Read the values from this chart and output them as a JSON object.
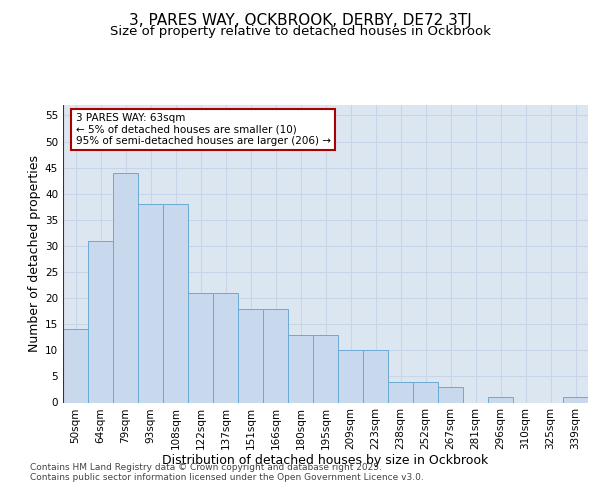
{
  "title_line1": "3, PARES WAY, OCKBROOK, DERBY, DE72 3TJ",
  "title_line2": "Size of property relative to detached houses in Ockbrook",
  "xlabel": "Distribution of detached houses by size in Ockbrook",
  "ylabel": "Number of detached properties",
  "categories": [
    "50sqm",
    "64sqm",
    "79sqm",
    "93sqm",
    "108sqm",
    "122sqm",
    "137sqm",
    "151sqm",
    "166sqm",
    "180sqm",
    "195sqm",
    "209sqm",
    "223sqm",
    "238sqm",
    "252sqm",
    "267sqm",
    "281sqm",
    "296sqm",
    "310sqm",
    "325sqm",
    "339sqm"
  ],
  "values": [
    14,
    31,
    44,
    38,
    38,
    21,
    21,
    18,
    18,
    13,
    13,
    10,
    10,
    4,
    4,
    3,
    0,
    1,
    0,
    0,
    1
  ],
  "bar_color": "#c8d9ed",
  "bar_edge_color": "#6aaad4",
  "marker_color": "#aa0000",
  "annotation_line1": "3 PARES WAY: 63sqm",
  "annotation_line2": "← 5% of detached houses are smaller (10)",
  "annotation_line3": "95% of semi-detached houses are larger (206) →",
  "ylim": [
    0,
    57
  ],
  "yticks": [
    0,
    5,
    10,
    15,
    20,
    25,
    30,
    35,
    40,
    45,
    50,
    55
  ],
  "grid_color": "#c8d5e8",
  "background_color": "#dce6f0",
  "footer_text": "Contains HM Land Registry data © Crown copyright and database right 2025.\nContains public sector information licensed under the Open Government Licence v3.0.",
  "title_fontsize": 11,
  "subtitle_fontsize": 9.5,
  "axis_label_fontsize": 9,
  "tick_fontsize": 7.5,
  "annotation_fontsize": 7.5,
  "footer_fontsize": 6.5
}
